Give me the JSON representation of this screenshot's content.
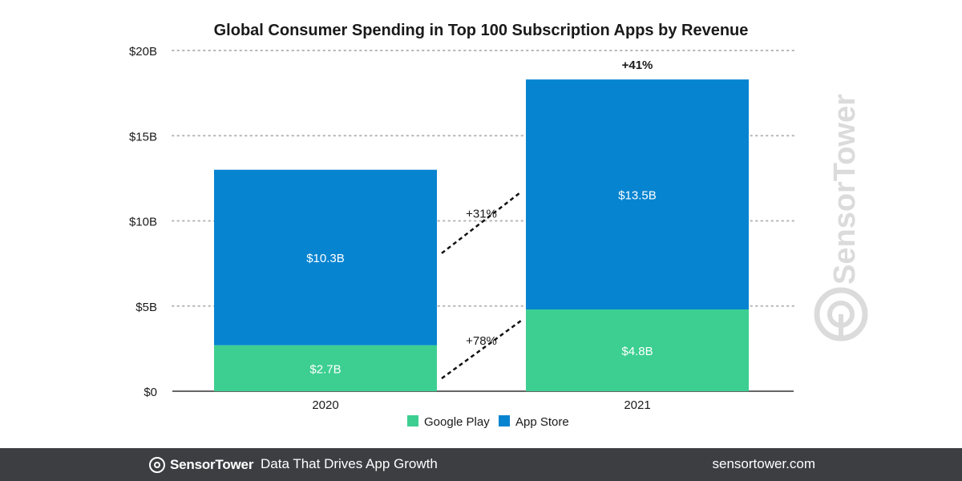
{
  "chart_data": {
    "type": "bar",
    "stacked": true,
    "title": "Global Consumer Spending in Top 100 Subscription Apps by Revenue",
    "categories": [
      "2020",
      "2021"
    ],
    "series": [
      {
        "name": "Google Play",
        "values": [
          2.7,
          4.8
        ],
        "labels": [
          "$2.7B",
          "$4.8B"
        ],
        "color": "#3ccf91"
      },
      {
        "name": "App Store",
        "values": [
          10.3,
          13.5
        ],
        "labels": [
          "$10.3B",
          "$13.5B"
        ],
        "color": "#0684d0"
      }
    ],
    "ylim": [
      0,
      20
    ],
    "yticks": [
      {
        "value": 0,
        "label": "$0"
      },
      {
        "value": 5,
        "label": "$5B"
      },
      {
        "value": 10,
        "label": "$10B"
      },
      {
        "value": 15,
        "label": "$15B"
      },
      {
        "value": 20,
        "label": "$20B"
      }
    ],
    "grid": true,
    "legend_position": "bottom-center",
    "annotations": {
      "total_growth": "+41%",
      "app_store_growth": "+31%",
      "google_play_growth": "+78%"
    }
  },
  "watermark": {
    "brand": "SensorTower"
  },
  "footer": {
    "brand": "SensorTower",
    "tagline": "Data That Drives App Growth",
    "url": "sensortower.com"
  }
}
